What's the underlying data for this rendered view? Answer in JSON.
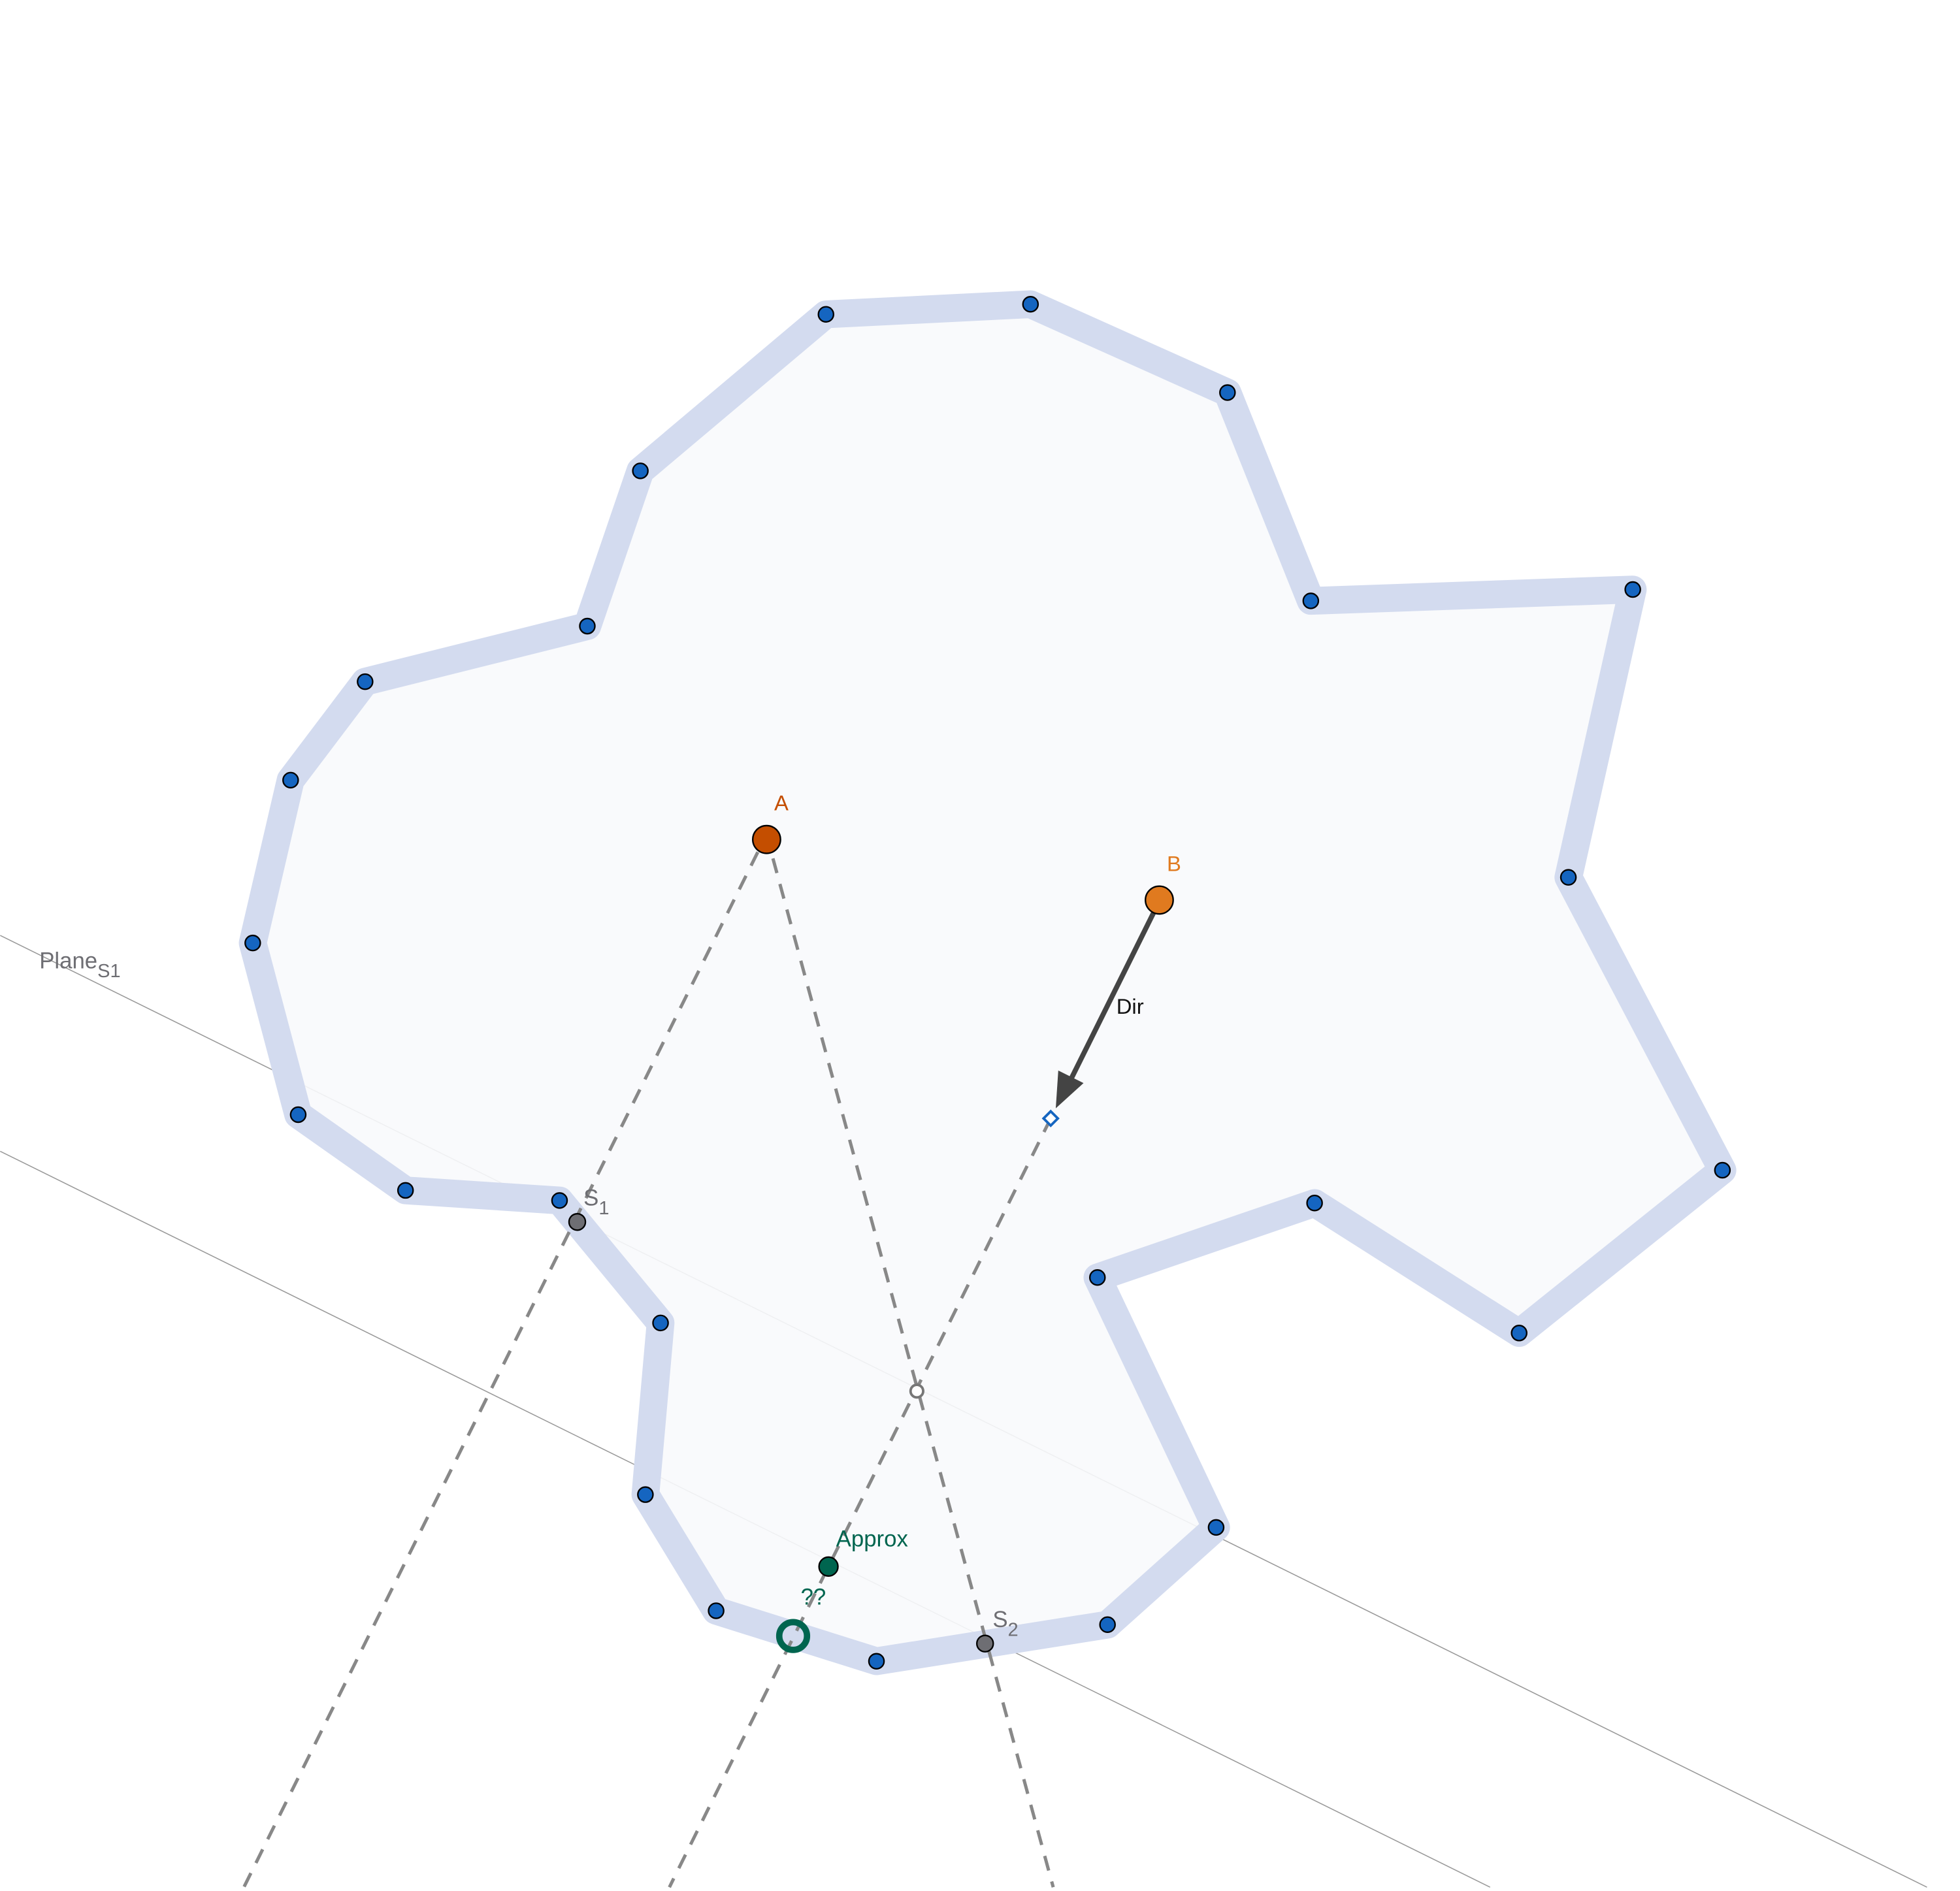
{
  "labels": {
    "plane": "Plane",
    "plane_sub": "S1",
    "a": "A",
    "b": "B",
    "dir": "Dir",
    "s1": "S",
    "s1_sub": "1",
    "s2": "S",
    "s2_sub": "2",
    "approx": "Approx",
    "unknown": "??"
  },
  "colors": {
    "polygon_fill": "#f8f9fc",
    "polygon_edge": "#d3dbef",
    "vertex": "#1565c0",
    "point_a": "#c44e00",
    "point_b": "#e07a1f",
    "intersection": "#6e6e73",
    "approx": "#00654f",
    "dashed": "#888888",
    "arrow": "#444444",
    "plane_line": "#999999",
    "label_gray": "#6e6e73"
  }
}
